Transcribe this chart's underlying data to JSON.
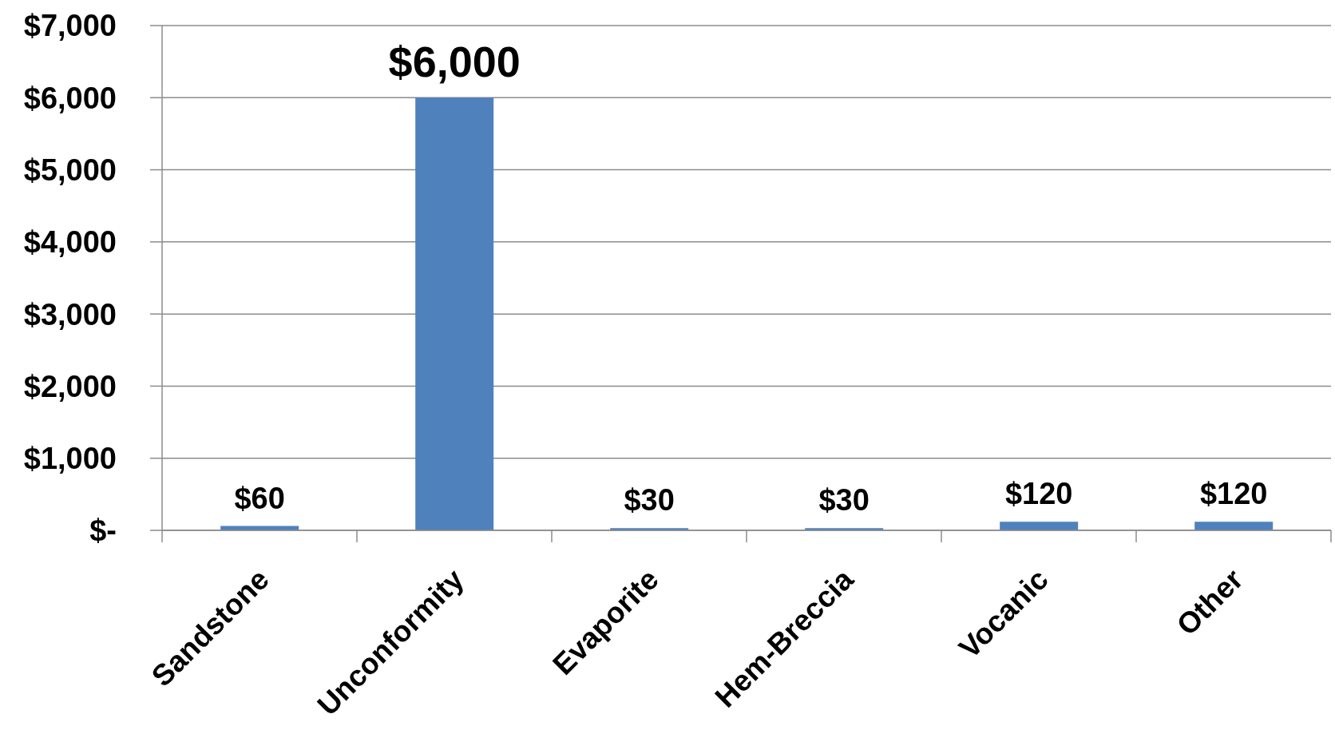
{
  "chart_data": {
    "type": "bar",
    "categories": [
      "Sandstone",
      "Unconformity",
      "Evaporite",
      "Hem-Breccia",
      "Vocanic",
      "Other"
    ],
    "values": [
      60,
      6000,
      30,
      30,
      120,
      120
    ],
    "color": "#4f81bd",
    "value_labels": [
      "$60",
      "$6,000",
      "$30",
      "$30",
      "$120",
      "$120"
    ],
    "ylim": [
      0,
      7000
    ],
    "yticks": [
      {
        "value": 0,
        "label": "$-"
      },
      {
        "value": 1000,
        "label": "$1,000"
      },
      {
        "value": 2000,
        "label": "$2,000"
      },
      {
        "value": 3000,
        "label": "$3,000"
      },
      {
        "value": 4000,
        "label": "$4,000"
      },
      {
        "value": 5000,
        "label": "$5,000"
      },
      {
        "value": 6000,
        "label": "$6,000"
      },
      {
        "value": 7000,
        "label": "$7,000"
      }
    ],
    "grid": "y"
  }
}
